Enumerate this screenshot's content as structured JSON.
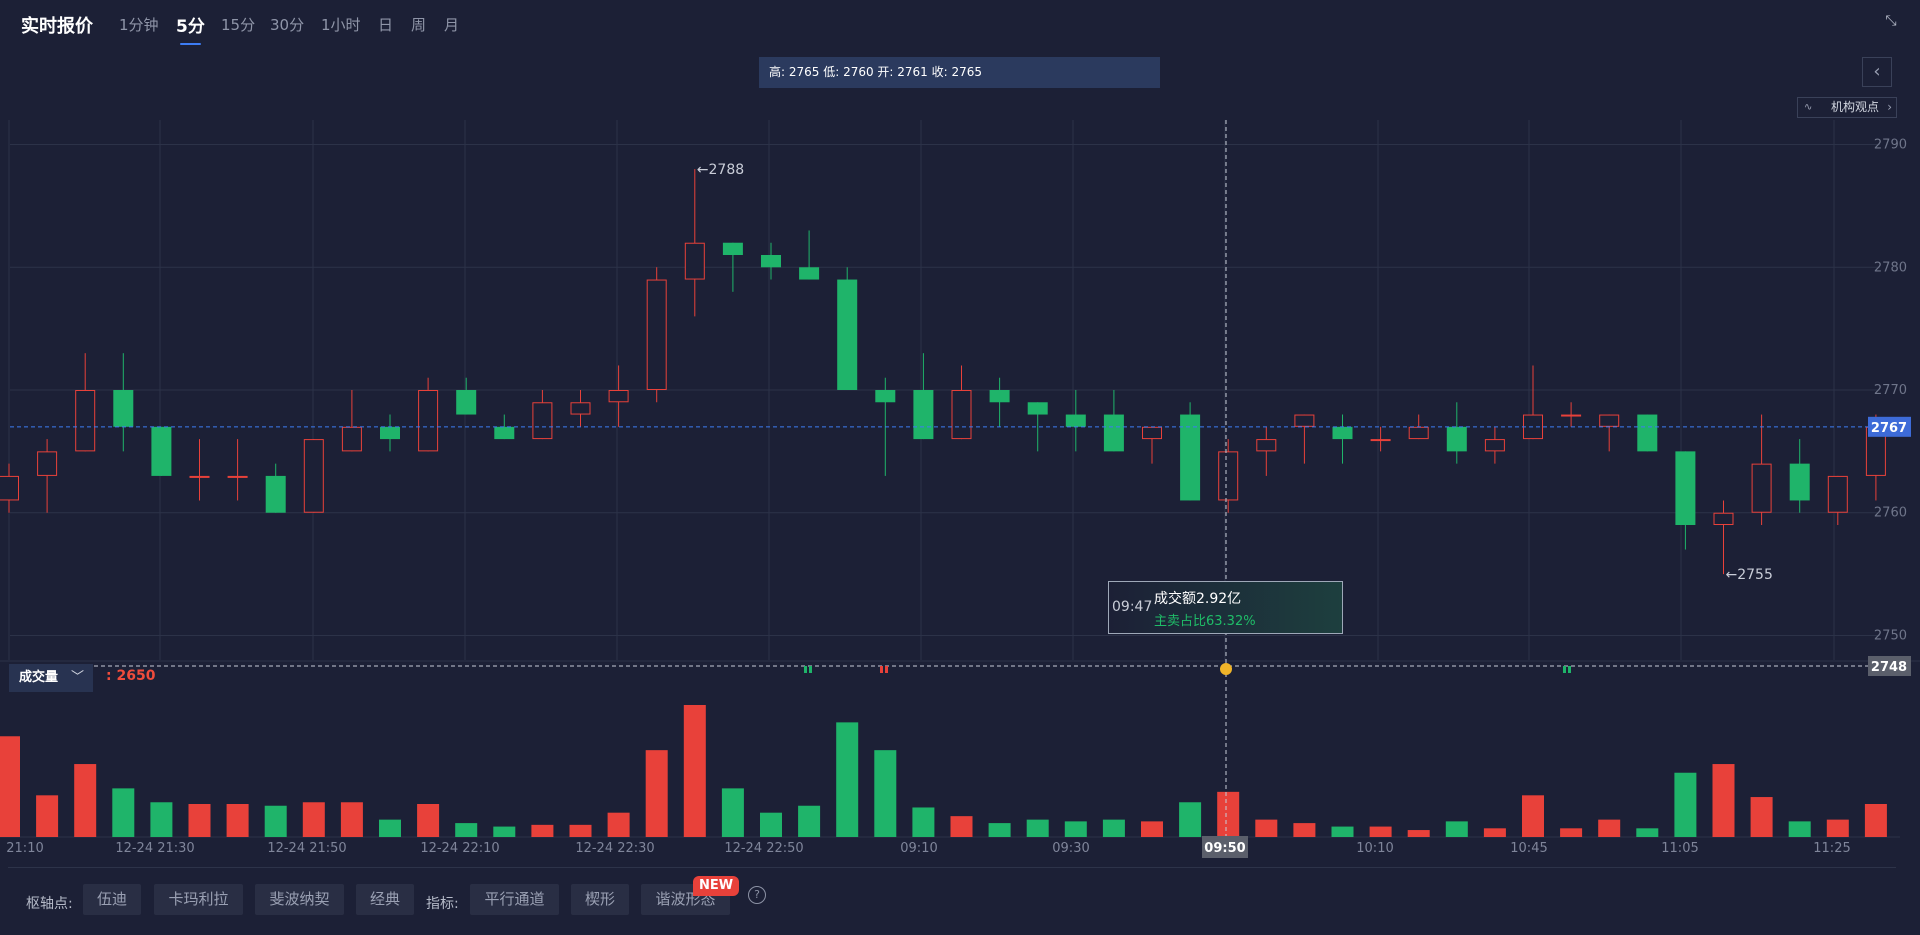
{
  "header": {
    "title": "实时报价",
    "timeframes": [
      "1分钟",
      "5分",
      "15分",
      "30分",
      "1小时",
      "日",
      "周",
      "月"
    ],
    "active_timeframe": "5分",
    "ohlc_text": "高: 2765 低: 2760 开: 2761 收: 2765",
    "institution_view": "机构观点"
  },
  "volume_panel": {
    "selector": "成交量",
    "value": ": 2650"
  },
  "tooltip": {
    "time": "09:47",
    "amount": "成交额2.92亿",
    "ratio": "主卖占比63.32%"
  },
  "footer": {
    "pivot_label": "枢轴点:",
    "pivot_buttons": [
      "伍迪",
      "卡玛利拉",
      "斐波纳契",
      "经典"
    ],
    "indicator_label": "指标:",
    "indicator_buttons": [
      "平行通道",
      "楔形",
      "谐波形态"
    ],
    "new_badge": "NEW"
  },
  "colors": {
    "up": "#e8413a",
    "down": "#1fb46a",
    "accent": "#3d7cf4",
    "background": "#1c2036"
  },
  "chart_data": {
    "type": "candlestick",
    "title": "",
    "ylim": [
      2748,
      2792
    ],
    "yticks": [
      2750,
      2760,
      2770,
      2780,
      2790
    ],
    "y_axis_position": "right",
    "grid": true,
    "current_price": 2767,
    "crosshair_price": 2748,
    "crosshair_time": "09:50",
    "high_annotation": "←2788",
    "low_annotation": "←2755",
    "x_tick_labels": [
      "21:10",
      "12-24 21:30",
      "12-24 21:50",
      "12-24 22:10",
      "12-24 22:30",
      "12-24 22:50",
      "09:10",
      "09:30",
      "09:50",
      "10:10",
      "10:45",
      "11:05",
      "11:25"
    ],
    "candles": [
      {
        "o": 2761,
        "c": 2763,
        "h": 2764,
        "l": 2760
      },
      {
        "o": 2763,
        "c": 2765,
        "h": 2766,
        "l": 2760
      },
      {
        "o": 2765,
        "c": 2770,
        "h": 2773,
        "l": 2765
      },
      {
        "o": 2770,
        "c": 2767,
        "h": 2773,
        "l": 2765
      },
      {
        "o": 2767,
        "c": 2763,
        "h": 2767,
        "l": 2763
      },
      {
        "o": 2763,
        "c": 2763,
        "h": 2766,
        "l": 2761
      },
      {
        "o": 2763,
        "c": 2763,
        "h": 2766,
        "l": 2761
      },
      {
        "o": 2763,
        "c": 2760,
        "h": 2764,
        "l": 2760
      },
      {
        "o": 2760,
        "c": 2766,
        "h": 2766,
        "l": 2760
      },
      {
        "o": 2765,
        "c": 2767,
        "h": 2770,
        "l": 2765
      },
      {
        "o": 2767,
        "c": 2766,
        "h": 2768,
        "l": 2765
      },
      {
        "o": 2765,
        "c": 2770,
        "h": 2771,
        "l": 2765
      },
      {
        "o": 2770,
        "c": 2768,
        "h": 2771,
        "l": 2768
      },
      {
        "o": 2767,
        "c": 2766,
        "h": 2768,
        "l": 2766
      },
      {
        "o": 2766,
        "c": 2769,
        "h": 2770,
        "l": 2766
      },
      {
        "o": 2768,
        "c": 2769,
        "h": 2770,
        "l": 2767
      },
      {
        "o": 2769,
        "c": 2770,
        "h": 2772,
        "l": 2767
      },
      {
        "o": 2770,
        "c": 2779,
        "h": 2780,
        "l": 2769
      },
      {
        "o": 2779,
        "c": 2782,
        "h": 2788,
        "l": 2776
      },
      {
        "o": 2782,
        "c": 2781,
        "h": 2782,
        "l": 2778
      },
      {
        "o": 2781,
        "c": 2780,
        "h": 2782,
        "l": 2779
      },
      {
        "o": 2780,
        "c": 2779,
        "h": 2783,
        "l": 2779
      },
      {
        "o": 2779,
        "c": 2770,
        "h": 2780,
        "l": 2770
      },
      {
        "o": 2770,
        "c": 2769,
        "h": 2771,
        "l": 2763
      },
      {
        "o": 2770,
        "c": 2766,
        "h": 2773,
        "l": 2766
      },
      {
        "o": 2766,
        "c": 2770,
        "h": 2772,
        "l": 2766
      },
      {
        "o": 2770,
        "c": 2769,
        "h": 2771,
        "l": 2767
      },
      {
        "o": 2769,
        "c": 2768,
        "h": 2769,
        "l": 2765
      },
      {
        "o": 2768,
        "c": 2767,
        "h": 2770,
        "l": 2765
      },
      {
        "o": 2768,
        "c": 2765,
        "h": 2770,
        "l": 2765
      },
      {
        "o": 2766,
        "c": 2767,
        "h": 2767,
        "l": 2764
      },
      {
        "o": 2768,
        "c": 2761,
        "h": 2769,
        "l": 2761
      },
      {
        "o": 2761,
        "c": 2765,
        "h": 2766,
        "l": 2760
      },
      {
        "o": 2765,
        "c": 2766,
        "h": 2767,
        "l": 2763
      },
      {
        "o": 2767,
        "c": 2768,
        "h": 2768,
        "l": 2764
      },
      {
        "o": 2767,
        "c": 2766,
        "h": 2768,
        "l": 2764
      },
      {
        "o": 2766,
        "c": 2766,
        "h": 2767,
        "l": 2765
      },
      {
        "o": 2766,
        "c": 2767,
        "h": 2768,
        "l": 2766
      },
      {
        "o": 2767,
        "c": 2765,
        "h": 2769,
        "l": 2764
      },
      {
        "o": 2765,
        "c": 2766,
        "h": 2767,
        "l": 2764
      },
      {
        "o": 2766,
        "c": 2768,
        "h": 2772,
        "l": 2766
      },
      {
        "o": 2768,
        "c": 2768,
        "h": 2769,
        "l": 2767
      },
      {
        "o": 2767,
        "c": 2768,
        "h": 2768,
        "l": 2765
      },
      {
        "o": 2768,
        "c": 2765,
        "h": 2768,
        "l": 2765
      },
      {
        "o": 2765,
        "c": 2759,
        "h": 2765,
        "l": 2757
      },
      {
        "o": 2759,
        "c": 2760,
        "h": 2761,
        "l": 2755
      },
      {
        "o": 2760,
        "c": 2764,
        "h": 2768,
        "l": 2759
      },
      {
        "o": 2764,
        "c": 2761,
        "h": 2766,
        "l": 2760
      },
      {
        "o": 2760,
        "c": 2763,
        "h": 2763,
        "l": 2759
      },
      {
        "o": 2763,
        "c": 2767,
        "h": 2768,
        "l": 2761
      }
    ],
    "volume": {
      "values": [
        2900,
        1200,
        2100,
        1400,
        1000,
        950,
        950,
        900,
        1000,
        1000,
        500,
        950,
        400,
        300,
        350,
        350,
        700,
        2500,
        3800,
        1400,
        700,
        900,
        3300,
        2500,
        850,
        600,
        400,
        500,
        450,
        500,
        450,
        1000,
        1300,
        500,
        400,
        300,
        300,
        200,
        450,
        250,
        1200,
        250,
        500,
        250,
        1850,
        2100,
        1150,
        450,
        500,
        950
      ],
      "max": 3800
    }
  }
}
